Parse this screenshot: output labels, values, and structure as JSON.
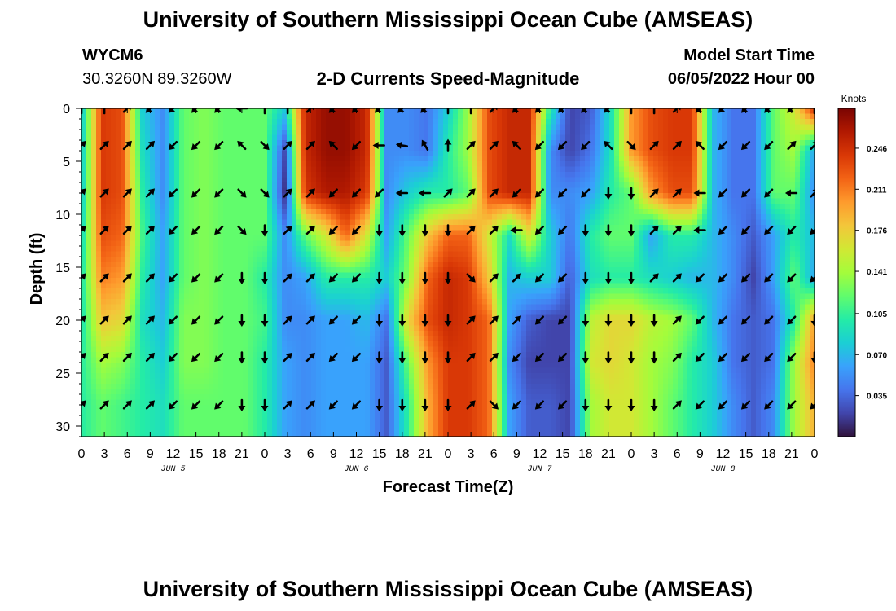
{
  "header": {
    "title": "University of Southern Mississippi Ocean Cube (AMSEAS)",
    "station_id": "WYCM6",
    "coords": "30.3260N  89.3260W",
    "chart_title": "2-D Currents Speed-Magnitude",
    "model_start_label": "Model Start Time",
    "model_start_value": "06/05/2022 Hour 00"
  },
  "footer": {
    "title": "University of Southern Mississippi Ocean Cube (AMSEAS)"
  },
  "chart_data": {
    "type": "heatmap",
    "title": "2-D Currents Speed-Magnitude",
    "xlabel": "Forecast Time(Z)",
    "ylabel": "Depth (ft)",
    "x_tick_labels": [
      "0",
      "3",
      "6",
      "9",
      "12",
      "15",
      "18",
      "21",
      "0",
      "3",
      "6",
      "9",
      "12",
      "15",
      "18",
      "21",
      "0",
      "3",
      "6",
      "9",
      "12",
      "15",
      "18",
      "21",
      "0",
      "3",
      "6",
      "9",
      "12",
      "15",
      "18",
      "21",
      "0"
    ],
    "x_range_hours": [
      0,
      96
    ],
    "day_labels": [
      {
        "label": "JUN 5",
        "hour": 12
      },
      {
        "label": "JUN 6",
        "hour": 36
      },
      {
        "label": "JUN 7",
        "hour": 60
      },
      {
        "label": "JUN 8",
        "hour": 84
      }
    ],
    "y_ticks": [
      0,
      5,
      10,
      15,
      20,
      25,
      30
    ],
    "y_range_ft": [
      0,
      31
    ],
    "colorbar": {
      "label": "Knots",
      "ticks": [
        0.246,
        0.211,
        0.176,
        0.141,
        0.105,
        0.07,
        0.035
      ],
      "tick_labels": [
        "0.246",
        "0.211",
        "0.176",
        "0.141",
        "0.105",
        "0.070",
        "0.035"
      ],
      "range": [
        0.0,
        0.28
      ],
      "colormap": [
        "#30123b",
        "#4145ab",
        "#4675ed",
        "#39a2fc",
        "#1bcfd4",
        "#24eca6",
        "#61fc6c",
        "#a4fc3b",
        "#d1e834",
        "#f3c63a",
        "#fe9b2d",
        "#f36315",
        "#d93806",
        "#b11901",
        "#7a0402"
      ]
    },
    "depths_ft": [
      0,
      4,
      8,
      12,
      16,
      20,
      24,
      28
    ],
    "speed_knots": [
      [
        0.07,
        0.24,
        0.23,
        0.08,
        0.05,
        0.12,
        0.13,
        0.12,
        0.12,
        0.12,
        0.08,
        0.25,
        0.27,
        0.27,
        0.25,
        0.05,
        0.05,
        0.04,
        0.08,
        0.14,
        0.23,
        0.25,
        0.25,
        0.1,
        0.02,
        0.03,
        0.09,
        0.2,
        0.23,
        0.24,
        0.24,
        0.07,
        0.04,
        0.04,
        0.12,
        0.16,
        0.25
      ],
      [
        0.07,
        0.24,
        0.23,
        0.09,
        0.05,
        0.12,
        0.13,
        0.12,
        0.12,
        0.12,
        0.02,
        0.25,
        0.27,
        0.27,
        0.25,
        0.05,
        0.05,
        0.04,
        0.1,
        0.14,
        0.23,
        0.25,
        0.25,
        0.05,
        0.02,
        0.04,
        0.09,
        0.2,
        0.23,
        0.24,
        0.24,
        0.07,
        0.04,
        0.04,
        0.12,
        0.14,
        0.06
      ],
      [
        0.07,
        0.24,
        0.23,
        0.1,
        0.05,
        0.12,
        0.13,
        0.12,
        0.12,
        0.12,
        0.01,
        0.24,
        0.26,
        0.26,
        0.24,
        0.05,
        0.08,
        0.1,
        0.1,
        0.12,
        0.23,
        0.25,
        0.25,
        0.05,
        0.05,
        0.06,
        0.1,
        0.12,
        0.2,
        0.23,
        0.23,
        0.07,
        0.04,
        0.04,
        0.12,
        0.12,
        0.05
      ],
      [
        0.08,
        0.23,
        0.22,
        0.11,
        0.06,
        0.12,
        0.13,
        0.12,
        0.12,
        0.12,
        0.05,
        0.12,
        0.16,
        0.22,
        0.16,
        0.06,
        0.12,
        0.18,
        0.22,
        0.22,
        0.16,
        0.09,
        0.16,
        0.08,
        0.04,
        0.1,
        0.12,
        0.12,
        0.06,
        0.1,
        0.1,
        0.07,
        0.05,
        0.03,
        0.06,
        0.1,
        0.07
      ],
      [
        0.09,
        0.21,
        0.2,
        0.1,
        0.06,
        0.12,
        0.13,
        0.12,
        0.12,
        0.1,
        0.05,
        0.06,
        0.1,
        0.1,
        0.1,
        0.08,
        0.13,
        0.22,
        0.25,
        0.24,
        0.18,
        0.07,
        0.08,
        0.08,
        0.03,
        0.09,
        0.1,
        0.1,
        0.09,
        0.08,
        0.07,
        0.07,
        0.05,
        0.02,
        0.06,
        0.12,
        0.06
      ],
      [
        0.09,
        0.18,
        0.17,
        0.09,
        0.07,
        0.13,
        0.13,
        0.12,
        0.12,
        0.11,
        0.05,
        0.05,
        0.06,
        0.06,
        0.07,
        0.04,
        0.17,
        0.23,
        0.25,
        0.24,
        0.22,
        0.06,
        0.03,
        0.02,
        0.02,
        0.15,
        0.17,
        0.17,
        0.15,
        0.14,
        0.12,
        0.07,
        0.04,
        0.03,
        0.04,
        0.1,
        0.2
      ],
      [
        0.1,
        0.14,
        0.13,
        0.1,
        0.08,
        0.13,
        0.13,
        0.12,
        0.12,
        0.1,
        0.06,
        0.05,
        0.06,
        0.06,
        0.06,
        0.03,
        0.12,
        0.2,
        0.24,
        0.24,
        0.22,
        0.05,
        0.02,
        0.02,
        0.02,
        0.16,
        0.17,
        0.16,
        0.14,
        0.13,
        0.1,
        0.08,
        0.04,
        0.03,
        0.04,
        0.14,
        0.21
      ],
      [
        0.1,
        0.12,
        0.11,
        0.1,
        0.09,
        0.12,
        0.12,
        0.12,
        0.12,
        0.1,
        0.06,
        0.05,
        0.06,
        0.06,
        0.06,
        0.03,
        0.1,
        0.19,
        0.24,
        0.24,
        0.22,
        0.06,
        0.03,
        0.03,
        0.02,
        0.14,
        0.16,
        0.16,
        0.14,
        0.12,
        0.1,
        0.08,
        0.05,
        0.03,
        0.05,
        0.14,
        0.19
      ]
    ],
    "arrow_depths_ft": [
      0,
      3.5,
      8,
      11.5,
      16,
      20,
      23.5,
      28
    ],
    "arrow_hours": [
      0,
      3,
      6,
      9,
      12,
      15,
      18,
      21,
      24,
      27,
      30,
      33,
      36,
      39,
      42,
      45,
      48,
      51,
      54,
      57,
      60,
      63,
      66,
      69,
      72,
      75,
      78,
      81,
      84,
      87,
      90,
      93,
      96
    ],
    "arrow_direction_deg": [
      [
        0,
        0,
        45,
        225,
        225,
        225,
        225,
        270,
        0,
        0,
        45,
        225,
        225,
        225,
        225,
        225,
        0,
        0,
        45,
        225,
        225,
        225,
        225,
        225,
        0,
        0,
        45,
        225,
        225,
        225,
        225,
        225,
        0
      ],
      [
        45,
        45,
        45,
        45,
        225,
        225,
        225,
        315,
        135,
        45,
        45,
        315,
        225,
        270,
        280,
        330,
        0,
        45,
        45,
        315,
        225,
        225,
        225,
        315,
        135,
        45,
        45,
        315,
        225,
        225,
        225,
        45,
        45
      ],
      [
        45,
        45,
        45,
        45,
        225,
        225,
        225,
        135,
        135,
        45,
        45,
        225,
        225,
        225,
        270,
        270,
        45,
        45,
        45,
        225,
        225,
        225,
        225,
        180,
        180,
        45,
        45,
        270,
        225,
        225,
        225,
        270,
        45
      ],
      [
        45,
        45,
        45,
        45,
        225,
        225,
        225,
        135,
        180,
        45,
        45,
        225,
        225,
        180,
        180,
        180,
        180,
        45,
        45,
        270,
        225,
        225,
        180,
        180,
        180,
        45,
        45,
        270,
        225,
        225,
        225,
        225,
        225
      ],
      [
        45,
        45,
        45,
        45,
        225,
        225,
        225,
        180,
        180,
        45,
        45,
        225,
        225,
        180,
        180,
        180,
        180,
        135,
        45,
        45,
        225,
        225,
        180,
        180,
        180,
        45,
        45,
        225,
        225,
        225,
        225,
        225,
        225
      ],
      [
        45,
        45,
        45,
        45,
        225,
        225,
        225,
        180,
        180,
        45,
        45,
        225,
        225,
        180,
        180,
        180,
        180,
        45,
        45,
        45,
        225,
        225,
        180,
        180,
        180,
        180,
        45,
        225,
        225,
        225,
        225,
        225,
        180
      ],
      [
        45,
        45,
        45,
        45,
        225,
        225,
        225,
        180,
        180,
        45,
        45,
        225,
        225,
        180,
        180,
        180,
        180,
        45,
        45,
        225,
        225,
        225,
        180,
        180,
        180,
        180,
        45,
        225,
        225,
        225,
        225,
        225,
        180
      ],
      [
        45,
        45,
        45,
        45,
        225,
        225,
        225,
        180,
        180,
        45,
        45,
        225,
        225,
        180,
        180,
        180,
        180,
        45,
        135,
        225,
        225,
        225,
        180,
        180,
        180,
        180,
        45,
        225,
        225,
        225,
        225,
        225,
        225
      ]
    ]
  }
}
